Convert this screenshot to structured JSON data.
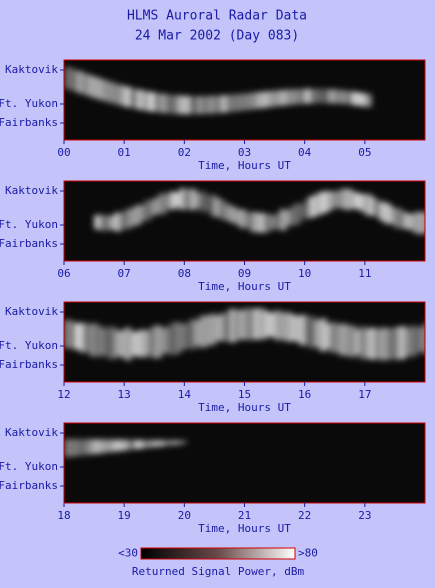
{
  "title": [
    "HLMS Auroral Radar Data",
    "24 Mar 2002 (Day 083)"
  ],
  "chart_data": [
    {
      "type": "heatmap",
      "xlabel": "Time, Hours UT",
      "xlim": [
        0,
        6
      ],
      "xticks": [
        {
          "value": 0,
          "label": "00"
        },
        {
          "value": 1,
          "label": "01"
        },
        {
          "value": 2,
          "label": "02"
        },
        {
          "value": 3,
          "label": "03"
        },
        {
          "value": 4,
          "label": "04"
        },
        {
          "value": 5,
          "label": "05"
        }
      ],
      "ycategories": [
        "Kaktovik",
        "Ft. Yukon",
        "Fairbanks"
      ]
    },
    {
      "type": "heatmap",
      "xlabel": "Time, Hours UT",
      "xlim": [
        6,
        12
      ],
      "xticks": [
        {
          "value": 6,
          "label": "06"
        },
        {
          "value": 7,
          "label": "07"
        },
        {
          "value": 8,
          "label": "08"
        },
        {
          "value": 9,
          "label": "09"
        },
        10,
        11
      ],
      "ycategories": [
        "Kaktovik",
        "Ft. Yukon",
        "Fairbanks"
      ]
    },
    {
      "type": "heatmap",
      "xlabel": "Time, Hours UT",
      "xlim": [
        12,
        18
      ],
      "xticks": [
        12,
        13,
        14,
        15,
        16,
        17
      ],
      "ycategories": [
        "Kaktovik",
        "Ft. Yukon",
        "Fairbanks"
      ]
    },
    {
      "type": "heatmap",
      "xlabel": "Time, Hours UT",
      "xlim": [
        18,
        24
      ],
      "xticks": [
        18,
        19,
        20,
        21,
        22,
        23
      ],
      "ycategories": [
        "Kaktovik",
        "Ft. Yukon",
        "Fairbanks"
      ]
    }
  ],
  "colorbar": {
    "label": "Returned Signal Power, dBm",
    "clim": [
      30,
      80
    ],
    "ticks": [
      {
        "value": 30,
        "label": "<30"
      },
      {
        "value": 80,
        "label": ">80"
      }
    ]
  }
}
